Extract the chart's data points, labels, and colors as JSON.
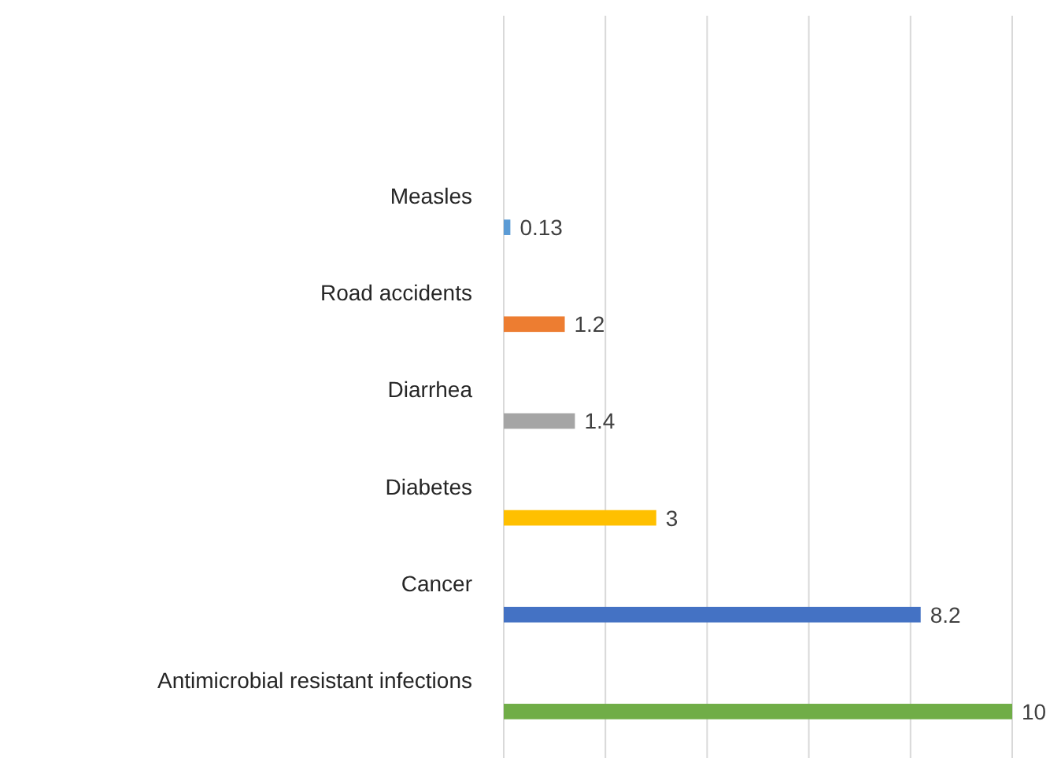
{
  "chart_data": {
    "type": "bar",
    "orientation": "horizontal",
    "categories": [
      "Measles",
      "Road accidents",
      "Diarrhea",
      "Diabetes",
      "Cancer",
      "Antimicrobial resistant infections"
    ],
    "values": [
      0.13,
      1.2,
      1.4,
      3,
      8.2,
      10
    ],
    "colors": [
      "#5b9bd5",
      "#ed7d31",
      "#a5a5a5",
      "#ffc000",
      "#4472c4",
      "#70ad47"
    ],
    "xlim": [
      0,
      10
    ],
    "xticks": [
      {
        "value": 0,
        "label": null
      },
      {
        "value": 2,
        "label": null
      },
      {
        "value": 4,
        "label": null
      },
      {
        "value": 6,
        "label": null
      },
      {
        "value": 8,
        "label": null
      },
      {
        "value": 10,
        "label": null
      }
    ],
    "grid": "x",
    "data_labels": true,
    "tick_labels": "y"
  }
}
